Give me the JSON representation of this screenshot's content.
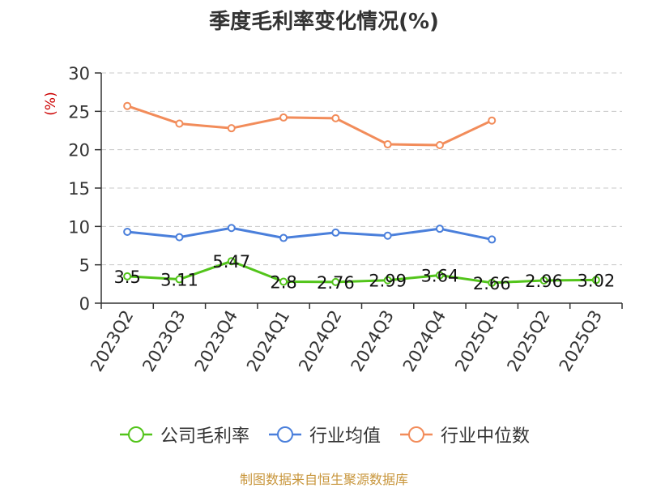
{
  "chart_data": {
    "type": "line",
    "title": "季度毛利率变化情况(%)",
    "ylabel": "(%)",
    "categories": [
      "2023Q2",
      "2023Q3",
      "2023Q4",
      "2024Q1",
      "2024Q2",
      "2024Q3",
      "2024Q4",
      "2025Q1",
      "2025Q2",
      "2025Q3"
    ],
    "ylim": [
      0,
      30
    ],
    "yticks": [
      0,
      5,
      10,
      15,
      20,
      25,
      30
    ],
    "grid": true,
    "legend_position": "bottom",
    "series": [
      {
        "name": "公司毛利率",
        "color": "#52c41a",
        "values": [
          3.5,
          3.11,
          5.47,
          2.8,
          2.76,
          2.99,
          3.64,
          2.66,
          2.96,
          3.02
        ],
        "value_labels": [
          "3.5",
          "3.11",
          "5.47",
          "2.8",
          "2.76",
          "2.99",
          "3.64",
          "2.66",
          "2.96",
          "3.02"
        ]
      },
      {
        "name": "行业均值",
        "color": "#4a7fdb",
        "values": [
          9.3,
          8.6,
          9.8,
          8.5,
          9.2,
          8.8,
          9.7,
          8.3,
          null,
          null
        ]
      },
      {
        "name": "行业中位数",
        "color": "#f28c5a",
        "values": [
          25.7,
          23.4,
          22.8,
          24.2,
          24.1,
          20.7,
          20.6,
          23.8,
          null,
          null
        ]
      }
    ]
  },
  "source_note": "制图数据来自恒生聚源数据库"
}
